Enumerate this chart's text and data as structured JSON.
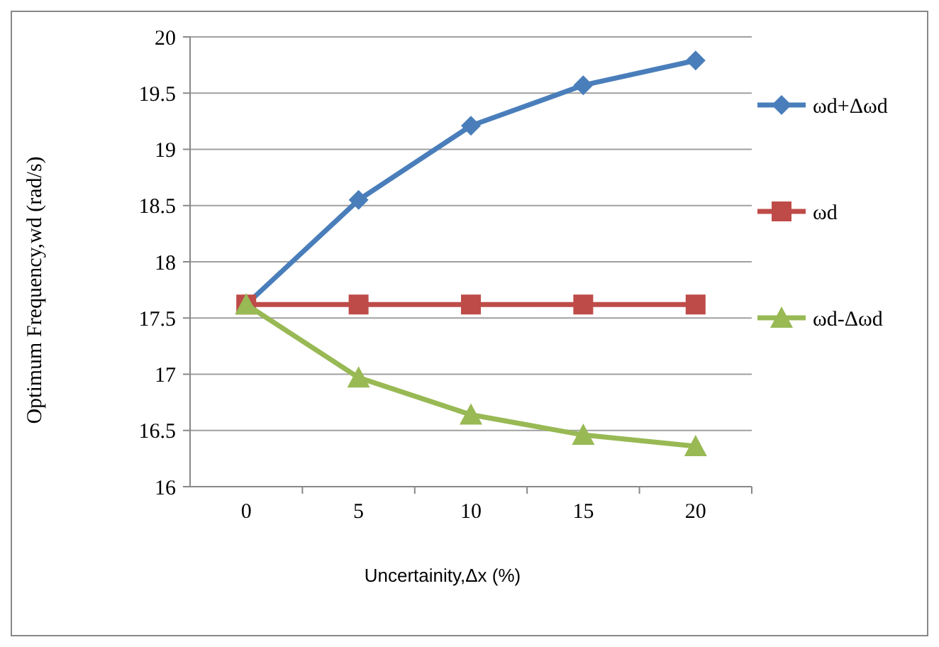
{
  "chart_data": {
    "type": "line",
    "xlabel": "Uncertainity,Δx (%)",
    "ylabel": "Optimum Frequency,wd (rad/s)",
    "categories": [
      "0",
      "5",
      "10",
      "15",
      "20"
    ],
    "series": [
      {
        "name": "ωd+Δωd",
        "color": "#4a7ebb",
        "marker": "diamond",
        "values": [
          17.62,
          18.55,
          19.21,
          19.57,
          19.79
        ]
      },
      {
        "name": "ωd",
        "color": "#be4b48",
        "marker": "square",
        "values": [
          17.62,
          17.62,
          17.62,
          17.62,
          17.62
        ]
      },
      {
        "name": "ωd-Δωd",
        "color": "#98b954",
        "marker": "triangle",
        "values": [
          17.62,
          16.97,
          16.64,
          16.46,
          16.36
        ]
      }
    ],
    "ylim": [
      16,
      20
    ],
    "yticks": [
      16,
      16.5,
      17,
      17.5,
      18,
      18.5,
      19,
      19.5,
      20
    ],
    "grid": "y",
    "legend": "right"
  }
}
